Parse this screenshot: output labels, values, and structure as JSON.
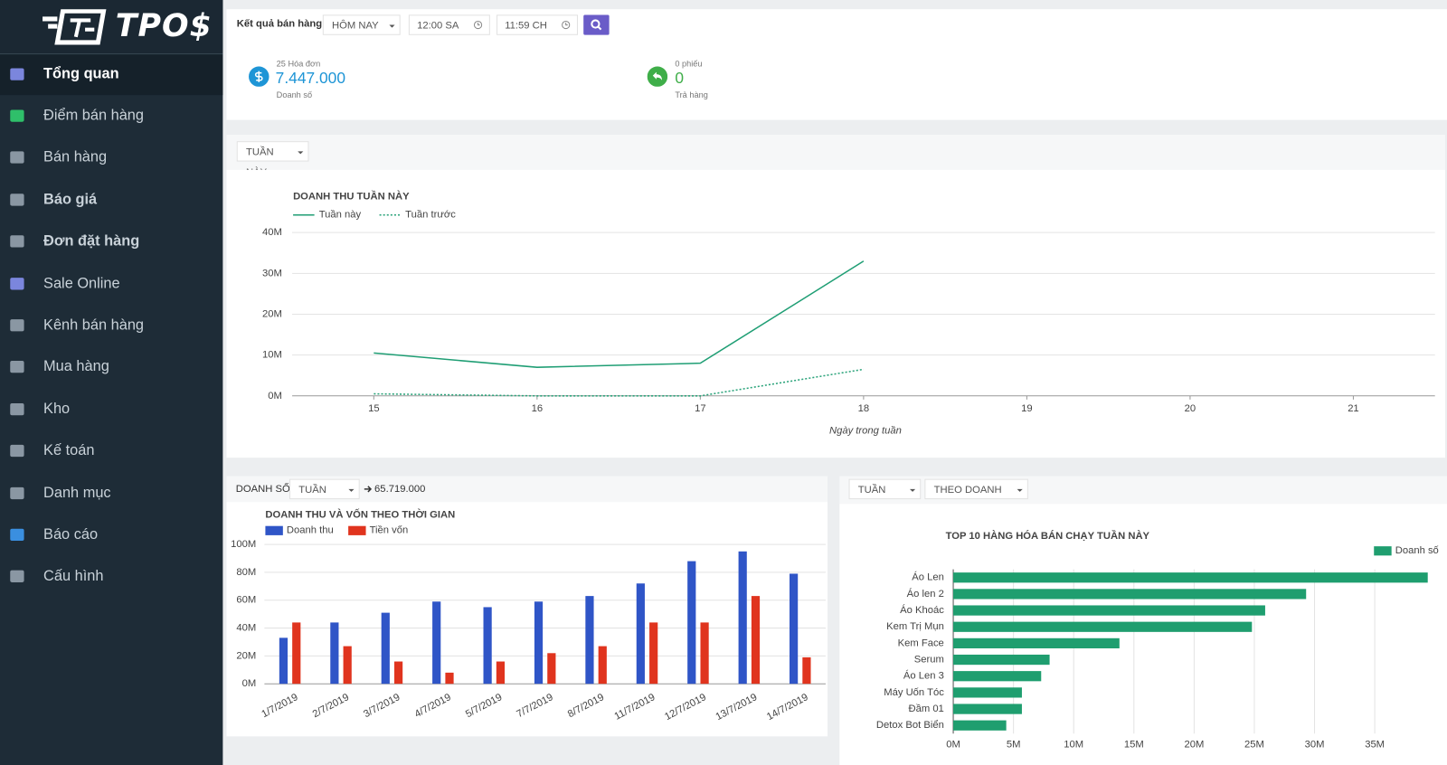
{
  "sidebar": {
    "logo": "TPO$",
    "menu": [
      "Tổng quan",
      "Điểm bán hàng",
      "Bán hàng",
      "Báo giá",
      "Đơn đặt hàng",
      "Sale Online",
      "Kênh bán hàng",
      "Mua hàng",
      "Kho",
      "Kế toán",
      "Danh mục",
      "Báo cáo",
      "Cấu hình"
    ]
  },
  "header": {
    "label": "Kết quả bán hàng",
    "period": "HÔM NAY",
    "from": "12:00 SA",
    "to": "11:59 CH"
  },
  "summary": [
    {
      "caption": "25 Hóa đơn",
      "amount": "7.447.000",
      "sublabel": "Doanh số"
    },
    {
      "caption": "0 phiếu",
      "amount": "0",
      "sublabel": "Trả hàng"
    }
  ],
  "week_filter": "TUẦN NÀY",
  "sales_panel": {
    "label": "DOANH SỐ",
    "period": "TUẦN NÀY",
    "total": "65.719.000"
  },
  "top_panel": {
    "period": "TUẦN NÀY",
    "sort": "THEO DOANH SỐ"
  },
  "chart_data": [
    {
      "type": "line",
      "title": "DOANH THU TUẦN NÀY",
      "x_label": "Ngày trong tuần",
      "x": [
        15,
        16,
        17,
        18,
        19,
        20,
        21
      ],
      "xlim": [
        14.5,
        21.5
      ],
      "xticks": [
        15,
        16,
        17,
        18,
        19,
        20,
        21
      ],
      "series": [
        {
          "name": "Tuần này",
          "color": "#1f9e74",
          "line_style": "solid",
          "values": [
            10.5,
            7,
            8,
            33,
            null,
            null,
            null
          ]
        },
        {
          "name": "Tuần trước",
          "color": "#2aa37a",
          "line_style": "dotted",
          "values": [
            0.5,
            0,
            0,
            6.5,
            null,
            null,
            null
          ]
        }
      ],
      "ylim": [
        0,
        40
      ],
      "yticks": [
        {
          "value": 0,
          "label": "0M"
        },
        {
          "value": 10,
          "label": "10M"
        },
        {
          "value": 20,
          "label": "20M"
        },
        {
          "value": 30,
          "label": "30M"
        },
        {
          "value": 40,
          "label": "40M"
        }
      ],
      "grid": true,
      "legend": "top-left"
    },
    {
      "type": "bar",
      "title": "DOANH THU VÀ VỐN THEO THỜI GIAN",
      "categories": [
        "1/7/2019",
        "2/7/2019",
        "3/7/2019",
        "4/7/2019",
        "5/7/2019",
        "7/7/2019",
        "8/7/2019",
        "11/7/2019",
        "12/7/2019",
        "13/7/2019",
        "14/7/2019"
      ],
      "series": [
        {
          "name": "Doanh thu",
          "color": "#2f55c7",
          "values": [
            33,
            44,
            51,
            59,
            55,
            59,
            63,
            72,
            88,
            95,
            79
          ]
        },
        {
          "name": "Tiền vốn",
          "color": "#e0341e",
          "values": [
            44,
            27,
            16,
            8,
            16,
            22,
            27,
            44,
            44,
            63,
            19
          ]
        }
      ],
      "ylim": [
        0,
        100
      ],
      "yticks": [
        {
          "value": 0,
          "label": "0M"
        },
        {
          "value": 20,
          "label": "20M"
        },
        {
          "value": 40,
          "label": "40M"
        },
        {
          "value": 60,
          "label": "60M"
        },
        {
          "value": 80,
          "label": "80M"
        },
        {
          "value": 100,
          "label": "100M"
        }
      ],
      "grid": true,
      "legend": "top-left"
    },
    {
      "type": "bar",
      "orientation": "horizontal",
      "title": "TOP 10 HÀNG HÓA BÁN CHẠY TUẦN NÀY",
      "categories": [
        "Áo Len",
        "Áo len 2",
        "Áo Khoác",
        "Kem Trị Mụn",
        "Kem Face",
        "Serum",
        "Áo Len 3",
        "Máy Uốn Tóc",
        "Đầm 01",
        "Detox Bot Biển"
      ],
      "series": [
        {
          "name": "Doanh số",
          "color": "#1f9e6f",
          "values": [
            39.4,
            29.3,
            25.9,
            24.8,
            13.8,
            8.0,
            7.3,
            5.7,
            5.7,
            4.4
          ]
        }
      ],
      "xlim": [
        0,
        40
      ],
      "xticks": [
        {
          "value": 0,
          "label": "0M"
        },
        {
          "value": 5,
          "label": "5M"
        },
        {
          "value": 10,
          "label": "10M"
        },
        {
          "value": 15,
          "label": "15M"
        },
        {
          "value": 20,
          "label": "20M"
        },
        {
          "value": 25,
          "label": "25M"
        },
        {
          "value": 30,
          "label": "30M"
        },
        {
          "value": 35,
          "label": "35M"
        }
      ],
      "grid": true,
      "legend": "top-right"
    }
  ]
}
